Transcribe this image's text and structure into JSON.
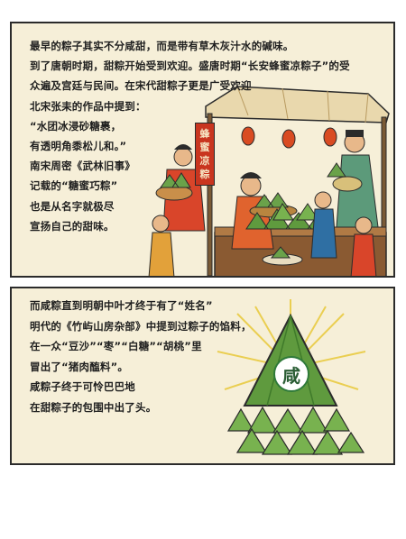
{
  "panel1": {
    "lines": [
      "最早的粽子其实不分咸甜，而是带有草木灰汁水的碱味。",
      "到了唐朝时期，甜粽开始受到欢迎。盛唐时期“长安蜂蜜凉粽子”的受",
      "众遍及宫廷与民间。在宋代甜粽子更是广受欢迎",
      "北宋张耒的作品中提到：",
      "“水团冰浸砂糖裹，",
      "有透明角黍松儿和。”",
      "南宋周密《武林旧事》",
      "记载的“糖蜜巧粽”",
      "也是从名字就极尽",
      "宣扬自己的甜味。"
    ],
    "sign_chars": [
      "蜂",
      "蜜",
      "凉",
      "粽"
    ]
  },
  "panel2": {
    "lines": [
      "而咸粽直到明朝中叶才终于有了“姓名”",
      "明代的《竹屿山房杂部》中提到过粽子的馅料，",
      "在一众“豆沙”“枣”“白糖”“胡桃”里",
      "冒出了“猪肉醢料”。",
      "咸粽子终于可怜巴巴地",
      "在甜粽子的包围中出了头。"
    ],
    "badge": "咸"
  }
}
